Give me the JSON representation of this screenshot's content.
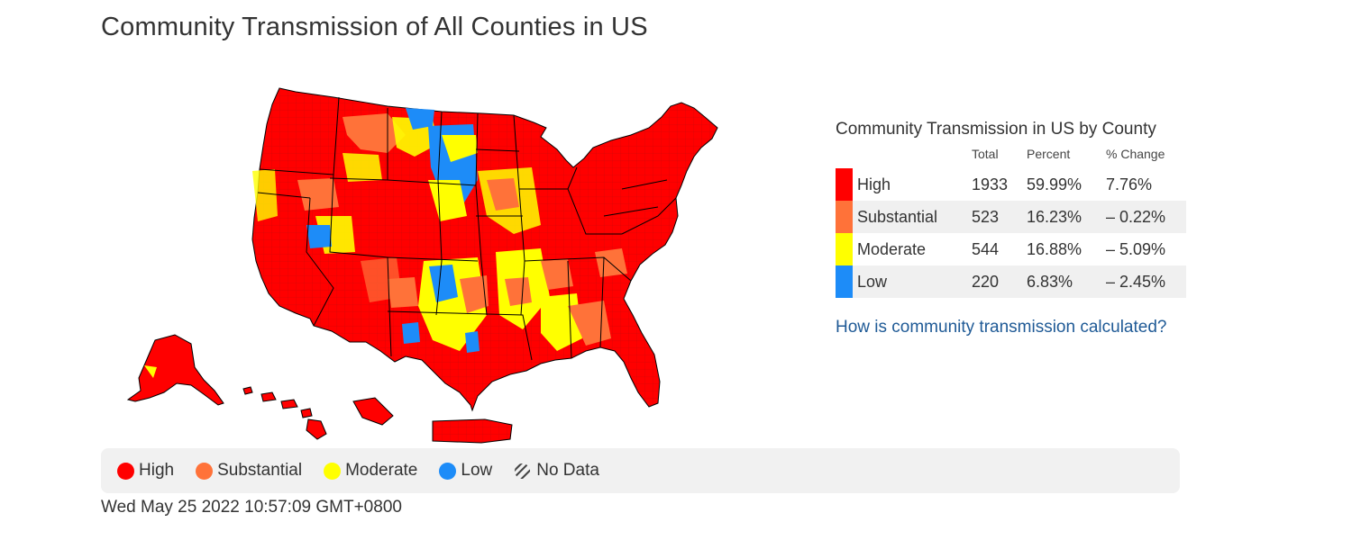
{
  "page": {
    "title": "Community Transmission of All Counties in US",
    "timestamp": "Wed May 25 2022 10:57:09 GMT+0800"
  },
  "colors": {
    "high": "#ff0000",
    "substantial": "#ff7239",
    "moderate": "#ffff00",
    "low": "#1d8cf8",
    "no_data_icon": "hatched-circle-icon",
    "link": "#1f5a96",
    "state_border": "#000000"
  },
  "summary": {
    "title": "Community Transmission in US by County",
    "headers": {
      "total": "Total",
      "percent": "Percent",
      "change": "% Change"
    },
    "rows": [
      {
        "level": "High",
        "total": "1933",
        "percent": "59.99%",
        "change": "7.76%",
        "color": "#ff0000"
      },
      {
        "level": "Substantial",
        "total": "523",
        "percent": "16.23%",
        "change": "– 0.22%",
        "color": "#ff7239"
      },
      {
        "level": "Moderate",
        "total": "544",
        "percent": "16.88%",
        "change": "– 5.09%",
        "color": "#ffff00"
      },
      {
        "level": "Low",
        "total": "220",
        "percent": "6.83%",
        "change": "– 2.45%",
        "color": "#1d8cf8"
      }
    ],
    "link_text": "How is community transmission calculated?"
  },
  "legend": {
    "items": [
      {
        "label": "High",
        "color": "#ff0000"
      },
      {
        "label": "Substantial",
        "color": "#ff7239"
      },
      {
        "label": "Moderate",
        "color": "#ffff00"
      },
      {
        "label": "Low",
        "color": "#1d8cf8"
      }
    ],
    "no_data_label": "No Data"
  },
  "map": {
    "regions": [
      "contiguous-us",
      "alaska",
      "hawaii",
      "puerto-rico"
    ],
    "dominant_level": "High"
  }
}
